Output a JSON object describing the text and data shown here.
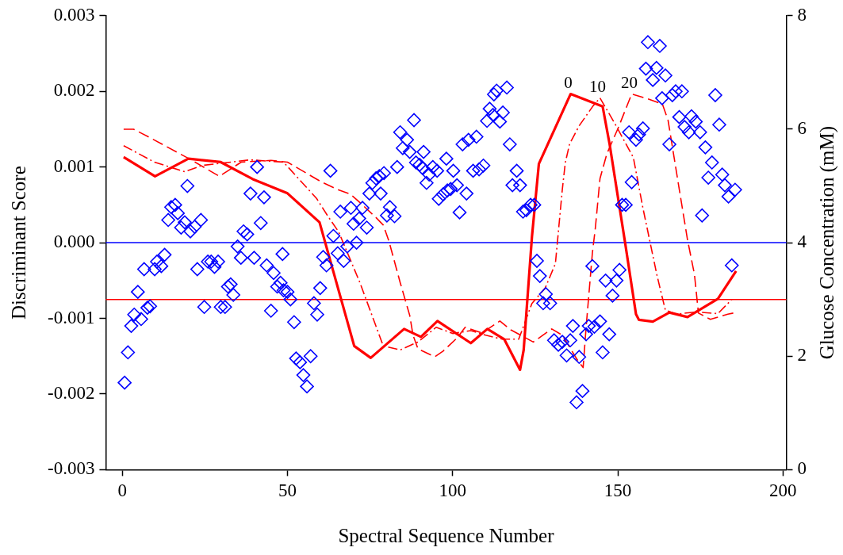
{
  "chart_data": {
    "type": "scatter",
    "xlabel": "Spectral Sequence Number",
    "ylabel": "Discriminant Score",
    "y2label": "Glucose Concentration (mM)",
    "xlim": [
      -5,
      201
    ],
    "xticks": [
      0,
      50,
      100,
      150,
      200
    ],
    "ylim": [
      -0.003,
      0.003
    ],
    "yticks": [
      -0.003,
      -0.002,
      -0.001,
      {
        "value": 0,
        "label": "0.000"
      },
      0.001,
      0.002,
      0.003
    ],
    "y2lim": [
      0,
      8
    ],
    "y2ticks": [
      0,
      2,
      4,
      6,
      8
    ],
    "grid": false,
    "legend": false,
    "series": [
      {
        "marker": "diamond",
        "color": "#0000ff",
        "x": [
          0.7,
          1.7,
          2.7,
          3.6,
          4.7,
          5.7,
          6.6,
          7.6,
          8.4,
          9.8,
          10.5,
          11.8,
          12.8,
          13.9,
          14.8,
          16,
          16.8,
          17.8,
          18.9,
          19.7,
          20.6,
          21.9,
          22.7,
          23.8,
          24.8,
          25.9,
          26.9,
          27.9,
          29,
          29.8,
          31.1,
          32,
          32.8,
          33.6,
          34.9,
          35.9,
          36.7,
          37.8,
          38.8,
          39.9,
          40.8,
          41.9,
          42.9,
          43.7,
          45,
          45.8,
          46.9,
          47.9,
          48.5,
          48.8,
          50,
          50.9,
          52,
          52.6,
          53.8,
          54.8,
          55.9,
          57,
          58,
          59,
          59.9,
          60.8,
          61.8,
          63,
          63.9,
          65.2,
          66,
          67,
          68.1,
          69.2,
          70,
          70.9,
          71.7,
          72.7,
          74,
          74.8,
          75.7,
          76.8,
          77.8,
          78.2,
          79.2,
          80.1,
          81,
          82.4,
          83.2,
          84.1,
          84.9,
          86.2,
          87,
          88.3,
          88.9,
          90,
          90.8,
          91.2,
          92.1,
          92.9,
          94,
          95.3,
          95.8,
          97.1,
          98.1,
          98.4,
          99.4,
          100.2,
          101.3,
          102.1,
          103,
          104.2,
          104.8,
          106.2,
          107.2,
          108,
          109.3,
          110.4,
          111.2,
          112.2,
          112.5,
          113.3,
          114.3,
          115.2,
          116.4,
          117.3,
          118.1,
          119.4,
          120.4,
          121.3,
          122.3,
          123.6,
          124.7,
          125.5,
          126.4,
          127.4,
          128.2,
          129.5,
          130.7,
          132,
          133.2,
          134.5,
          135.6,
          136.4,
          137.5,
          138.3,
          139.3,
          140.4,
          141.2,
          142.3,
          142.9,
          144.6,
          145.4,
          146.3,
          147.4,
          148.4,
          149.6,
          150.5,
          151.3,
          152.4,
          153.4,
          154.2,
          155.5,
          156.4,
          157.6,
          158.5,
          159.1,
          160.6,
          161.7,
          162.7,
          163.4,
          164.4,
          165.6,
          166.5,
          167.5,
          168.6,
          169.4,
          170.2,
          171.5,
          172.3,
          173.6,
          174.9,
          175.5,
          176.5,
          177.4,
          178.5,
          179.5,
          180.7,
          181.6,
          182.4,
          183.5,
          184.5,
          185.5
        ],
        "values": [
          -0.00185,
          -0.00145,
          -0.0011,
          -0.00095,
          -0.00065,
          -0.00101,
          -0.00035,
          -0.00086,
          -0.00084,
          -0.00035,
          -0.00025,
          -0.00031,
          -0.00016,
          0.0003,
          0.00047,
          0.0005,
          0.00039,
          0.0002,
          0.00027,
          0.00075,
          0.00015,
          0.00021,
          -0.00035,
          0.0003,
          -0.00085,
          -0.00025,
          -0.00025,
          -0.00032,
          -0.00025,
          -0.00085,
          -0.00085,
          -0.00058,
          -0.00055,
          -0.00069,
          -5e-05,
          -0.0002,
          0.00015,
          0.00011,
          0.00065,
          -0.0002,
          0.001,
          0.00026,
          0.0006,
          -0.0003,
          -0.0009,
          -0.0004,
          -0.00058,
          -0.00053,
          -0.00015,
          -0.00063,
          -0.00065,
          -0.00075,
          -0.00105,
          -0.00153,
          -0.00158,
          -0.00175,
          -0.0019,
          -0.0015,
          -0.0008,
          -0.00095,
          -0.0006,
          -0.00019,
          -0.0003,
          0.00095,
          9e-05,
          -0.00014,
          0.00041,
          -0.00024,
          -5e-05,
          0.00046,
          0.00025,
          0.0,
          0.00032,
          0.00046,
          0.0002,
          0.00065,
          0.00079,
          0.00085,
          0.00088,
          0.00065,
          0.00092,
          0.00036,
          0.00047,
          0.00035,
          0.001,
          0.00146,
          0.00125,
          0.00136,
          0.0012,
          0.00162,
          0.00106,
          0.00103,
          0.00099,
          0.0012,
          0.00079,
          0.0009,
          0.001,
          0.00095,
          0.00058,
          0.00064,
          0.00111,
          0.00069,
          0.00071,
          0.00095,
          0.00076,
          0.0004,
          0.0013,
          0.00065,
          0.00136,
          0.00095,
          0.0014,
          0.00097,
          0.00102,
          0.00161,
          0.00177,
          0.00169,
          0.00196,
          0.00201,
          0.0016,
          0.00172,
          0.00205,
          0.0013,
          0.00076,
          0.00095,
          0.00076,
          0.00041,
          0.00043,
          0.0005,
          0.0005,
          -0.00024,
          -0.00044,
          -0.0008,
          -0.00068,
          -0.0008,
          -0.00129,
          -0.00135,
          -0.00131,
          -0.00149,
          -0.00129,
          -0.0011,
          -0.00211,
          -0.00151,
          -0.00196,
          -0.00121,
          -0.0011,
          -0.00031,
          -0.00111,
          -0.00104,
          -0.00145,
          -0.0005,
          -0.00121,
          -0.0007,
          -0.0005,
          -0.00036,
          0.0005,
          0.0005,
          0.00146,
          0.0008,
          0.00136,
          0.00143,
          0.00151,
          0.0023,
          0.00265,
          0.00215,
          0.00231,
          0.0026,
          0.00191,
          0.00221,
          0.0013,
          0.00195,
          0.002,
          0.00166,
          0.002,
          0.00153,
          0.00146,
          0.00167,
          0.0016,
          0.00146,
          0.00036,
          0.00126,
          0.00086,
          0.00106,
          0.00195,
          0.00156,
          0.0009,
          0.00076,
          0.00061,
          -0.0003,
          0.0007
        ]
      },
      {
        "type": "line",
        "axis": "y2",
        "marker": "none",
        "line_style": "solid",
        "color": "#ff0000",
        "x": [
          0.4,
          9.9,
          20,
          29.8,
          39.5,
          50,
          59.7,
          70.2,
          75.2,
          85.3,
          90.4,
          95.4,
          105.5,
          110.5,
          115.6,
          120.4,
          121.5,
          124,
          126.1,
          135.7,
          145.4,
          147.5,
          152.2,
          155.5,
          156.4,
          160.6,
          165.6,
          171.1,
          180.3,
          185.8
        ],
        "values": [
          5.51,
          5.17,
          5.48,
          5.42,
          5.12,
          4.87,
          4.36,
          2.18,
          1.97,
          2.48,
          2.34,
          2.62,
          2.23,
          2.48,
          2.3,
          1.76,
          2.11,
          4.1,
          5.39,
          6.62,
          6.4,
          5.74,
          4.0,
          2.74,
          2.64,
          2.61,
          2.77,
          2.69,
          3.01,
          3.5
        ]
      },
      {
        "type": "line",
        "axis": "y2",
        "marker": "none",
        "line_style": "dashdot",
        "color": "#ff0000",
        "x": [
          0.4,
          9.7,
          18.9,
          24,
          38.7,
          48.8,
          58.8,
          62.2,
          65.5,
          71.9,
          79,
          84.1,
          89.5,
          95,
          100,
          105.5,
          110,
          115,
          120,
          124,
          128,
          131.1,
          133.2,
          134.1,
          135.4,
          138.3,
          142.5,
          144.6,
          149.2,
          154.7,
          157.6,
          161.8,
          163.1,
          164.4,
          167.7,
          173.6,
          180.3,
          184.5
        ],
        "values": [
          5.71,
          5.42,
          5.25,
          5.36,
          5.46,
          5.42,
          4.78,
          4.47,
          4.19,
          3.3,
          2.18,
          2.11,
          2.25,
          2.51,
          2.4,
          2.45,
          2.37,
          2.3,
          2.3,
          2.93,
          3.2,
          3.63,
          4.94,
          5.41,
          5.74,
          6.06,
          6.41,
          6.55,
          6.09,
          5.5,
          4.61,
          3.44,
          3.12,
          2.81,
          2.74,
          2.78,
          2.75,
          3.0
        ]
      },
      {
        "type": "line",
        "axis": "y2",
        "marker": "none",
        "line_style": "dashed",
        "color": "#ff0000",
        "x": [
          0.4,
          3.4,
          8.4,
          20.2,
          29.4,
          36,
          45,
          50,
          60,
          65,
          68.9,
          71.5,
          76.5,
          79,
          80.7,
          84.1,
          87,
          88,
          89.5,
          94.6,
          97.1,
          101.3,
          103.8,
          108.9,
          114.3,
          117.7,
          124.4,
          130,
          133.2,
          137.9,
          139.5,
          140.4,
          142.3,
          143.2,
          144.6,
          146.7,
          150.1,
          154.2,
          159.3,
          163.5,
          165.2,
          168.6,
          171.1,
          173.2,
          174.4,
          178,
          183.3,
          185.8
        ],
        "values": [
          6.0,
          6.0,
          5.85,
          5.48,
          5.17,
          5.42,
          5.45,
          5.42,
          5.08,
          4.94,
          4.86,
          4.73,
          4.46,
          4.31,
          4.03,
          3.3,
          2.72,
          2.37,
          2.13,
          1.99,
          2.09,
          2.32,
          2.51,
          2.41,
          2.62,
          2.46,
          2.25,
          2.48,
          2.37,
          1.92,
          1.8,
          2.51,
          3.82,
          4.26,
          5.13,
          5.57,
          6.02,
          6.62,
          6.53,
          6.44,
          6.16,
          4.94,
          4.05,
          3.44,
          2.76,
          2.65,
          2.74,
          2.77
        ]
      }
    ],
    "ref_lines": [
      {
        "axis": "y",
        "value": 0,
        "color": "#0000ff"
      },
      {
        "axis": "y2",
        "value": 3,
        "color": "#ff0000"
      }
    ],
    "annotations": [
      "0",
      "10",
      "20"
    ]
  }
}
